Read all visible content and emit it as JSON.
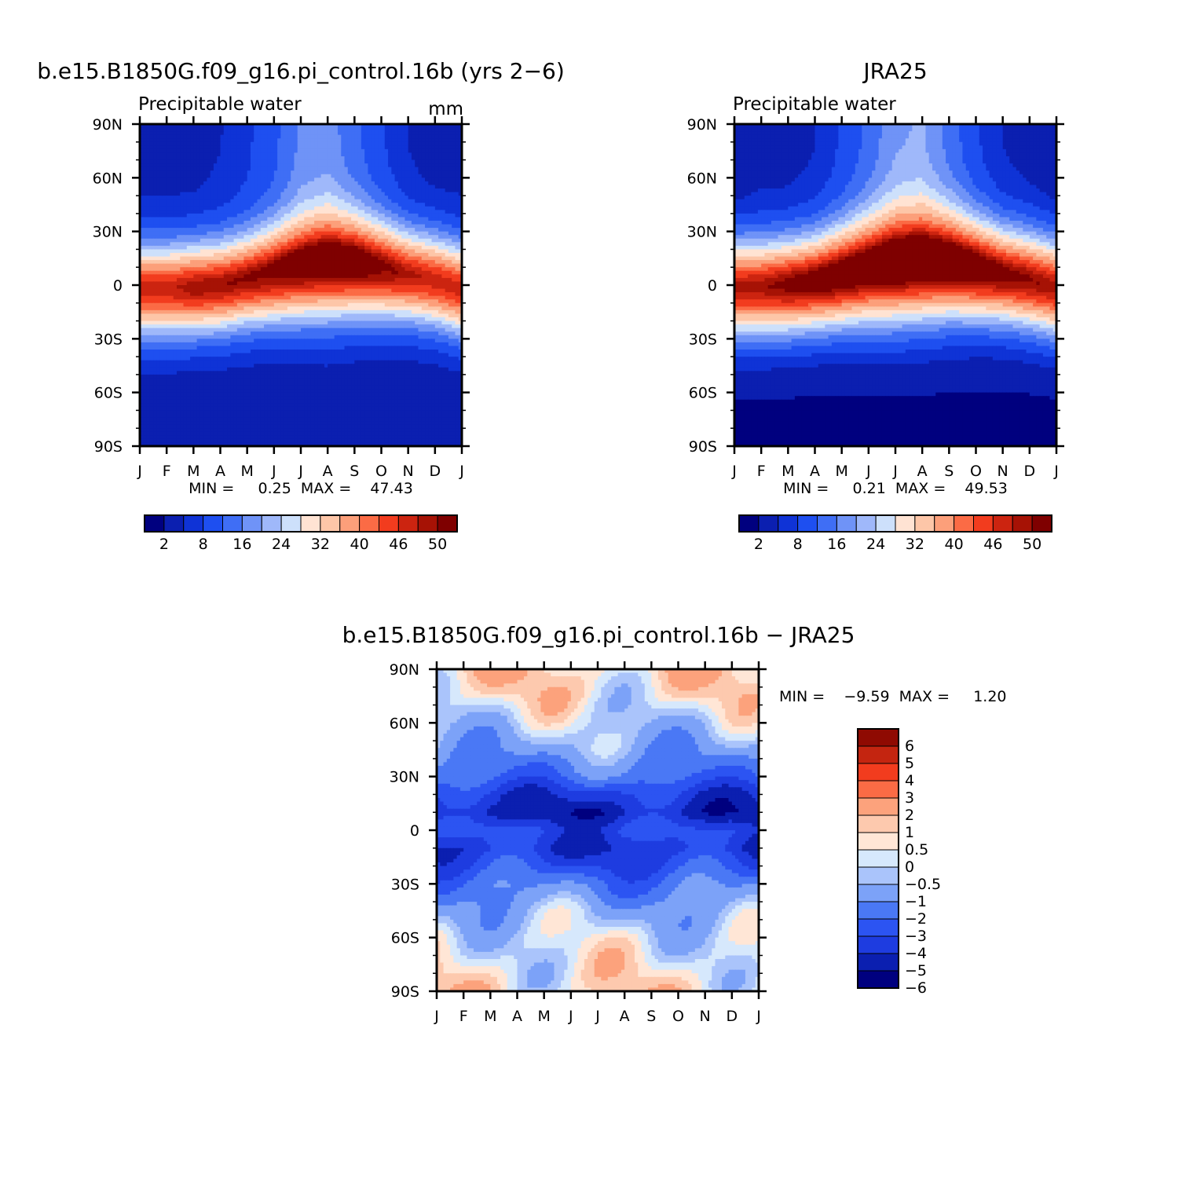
{
  "colors": {
    "abs_palette": [
      "#00007f",
      "#0b1fb0",
      "#0f33d6",
      "#1e4ff0",
      "#3f6ef5",
      "#6f93f7",
      "#9fb8fa",
      "#cde0fb",
      "#ffe3d3",
      "#fdc6a8",
      "#fc9f7a",
      "#fb6b45",
      "#f23c1e",
      "#cc2410",
      "#a61205",
      "#7f0000"
    ],
    "diff_palette": [
      "#00007f",
      "#0b1fb0",
      "#1e3ce0",
      "#2c54f2",
      "#4a78f5",
      "#7ca2f8",
      "#aac4fb",
      "#d6e8fc",
      "#ffe6d6",
      "#fdc9ae",
      "#fca27c",
      "#fb6b45",
      "#f23c1e",
      "#c42510",
      "#8f0a02"
    ]
  },
  "chart_data": [
    {
      "type": "heatmap",
      "title": "b.e15.B1850G.f09_g16.pi_control.16b (yrs 2−6)",
      "subtitle_left": "Precipitable water",
      "units": "mm",
      "stats": "MIN =     0.25  MAX =    47.43",
      "min": 0.25,
      "max": 47.43,
      "xlabel": "",
      "ylabel": "",
      "x_tick_labels": [
        "J",
        "F",
        "M",
        "A",
        "M",
        "J",
        "J",
        "A",
        "S",
        "O",
        "N",
        "D",
        "J"
      ],
      "y_tick_labels": [
        "90N",
        "60N",
        "30N",
        "0",
        "30S",
        "60S",
        "90S"
      ],
      "ylim": [
        -90,
        90
      ],
      "colorbar_labels": [
        "2",
        "8",
        "16",
        "24",
        "32",
        "40",
        "46",
        "50"
      ],
      "field": {
        "months": [
          "J",
          "F",
          "M",
          "A",
          "M",
          "J",
          "J",
          "A",
          "S",
          "O",
          "N",
          "D",
          "J"
        ],
        "itcz_lat": [
          -3,
          -3,
          -2,
          -1,
          2,
          5,
          8,
          10,
          10,
          8,
          5,
          2,
          -3
        ],
        "peak": [
          42,
          42,
          44,
          44,
          44,
          45,
          46,
          47,
          47,
          45,
          43,
          42,
          42
        ],
        "nh_polar": [
          3,
          3,
          3,
          4,
          6,
          9,
          14,
          15,
          11,
          7,
          4,
          3,
          3
        ],
        "sh_polar": [
          2,
          2,
          2,
          2,
          2,
          2,
          2,
          2,
          2,
          2,
          2,
          2,
          2
        ],
        "width": [
          18,
          18,
          18,
          18,
          18,
          19,
          20,
          21,
          20,
          19,
          18,
          18,
          18
        ]
      }
    },
    {
      "type": "heatmap",
      "title": "JRA25",
      "subtitle_left": "Precipitable water",
      "stats": "MIN =     0.21  MAX =    49.53",
      "min": 0.21,
      "max": 49.53,
      "xlabel": "",
      "ylabel": "",
      "x_tick_labels": [
        "J",
        "F",
        "M",
        "A",
        "M",
        "J",
        "J",
        "A",
        "S",
        "O",
        "N",
        "D",
        "J"
      ],
      "y_tick_labels": [
        "90N",
        "60N",
        "30N",
        "0",
        "30S",
        "60S",
        "90S"
      ],
      "ylim": [
        -90,
        90
      ],
      "colorbar_labels": [
        "2",
        "8",
        "16",
        "24",
        "32",
        "40",
        "46",
        "50"
      ],
      "field": {
        "months": [
          "J",
          "F",
          "M",
          "A",
          "M",
          "J",
          "J",
          "A",
          "S",
          "O",
          "N",
          "D",
          "J"
        ],
        "itcz_lat": [
          -2,
          -2,
          -1,
          1,
          4,
          7,
          9,
          10,
          10,
          8,
          5,
          2,
          -2
        ],
        "peak": [
          44,
          44,
          46,
          47,
          48,
          48,
          49,
          49,
          49,
          48,
          46,
          45,
          44
        ],
        "nh_polar": [
          2,
          3,
          3,
          4,
          7,
          11,
          16,
          17,
          12,
          7,
          4,
          3,
          2
        ],
        "sh_polar": [
          1,
          1,
          1,
          1,
          1,
          1,
          1,
          1,
          1,
          1,
          1,
          1,
          1
        ],
        "width": [
          19,
          19,
          19,
          19,
          20,
          21,
          22,
          22,
          21,
          20,
          19,
          19,
          19
        ]
      }
    },
    {
      "type": "heatmap",
      "title": "b.e15.B1850G.f09_g16.pi_control.16b − JRA25",
      "stats": "MIN =    −9.59  MAX =     1.20",
      "min": -9.59,
      "max": 1.2,
      "xlabel": "",
      "ylabel": "",
      "x_tick_labels": [
        "J",
        "F",
        "M",
        "A",
        "M",
        "J",
        "J",
        "A",
        "S",
        "O",
        "N",
        "D",
        "J"
      ],
      "y_tick_labels": [
        "90N",
        "60N",
        "30N",
        "0",
        "30S",
        "60S",
        "90S"
      ],
      "ylim": [
        -90,
        90
      ],
      "colorbar_labels": [
        "6",
        "5",
        "4",
        "3",
        "2",
        "1",
        "0.5",
        "0",
        "−0.5",
        "−1",
        "−2",
        "−3",
        "−4",
        "−5",
        "−6"
      ],
      "field": {
        "months": [
          "J",
          "F",
          "M",
          "A",
          "M",
          "J",
          "J",
          "A",
          "S",
          "O",
          "N",
          "D",
          "J"
        ],
        "lat_profile_lats": [
          90,
          75,
          60,
          45,
          30,
          20,
          10,
          0,
          -10,
          -20,
          -30,
          -45,
          -60,
          -75,
          -90
        ],
        "lat_profile_vals": [
          0.6,
          0.2,
          -0.6,
          -1.5,
          -2.8,
          -4.5,
          -5.5,
          -4.0,
          -4.8,
          -3.8,
          -2.5,
          -1.2,
          -0.4,
          0.0,
          0.3
        ]
      }
    }
  ]
}
